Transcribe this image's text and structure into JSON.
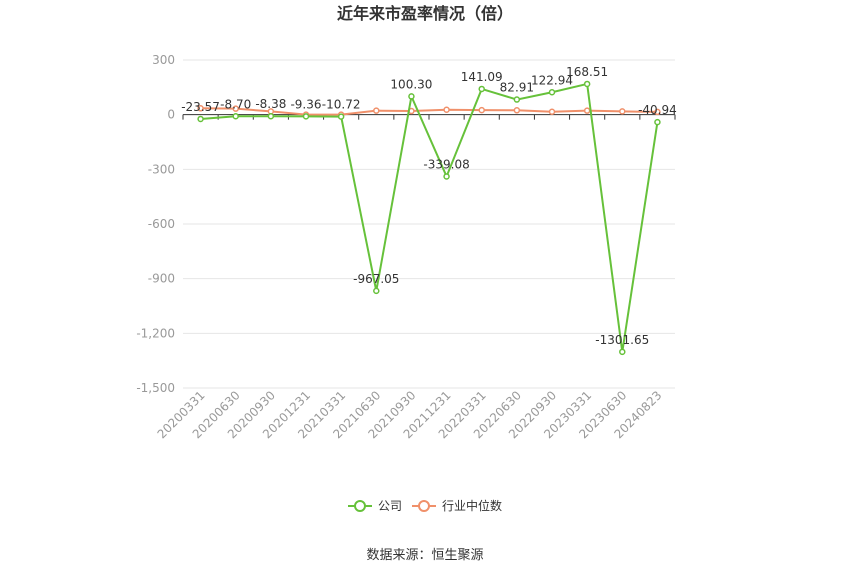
{
  "chart_data": {
    "type": "line",
    "title": "近年来市盈率情况（倍）",
    "xlabel": "",
    "ylabel": "",
    "ylim": [
      -1500,
      300
    ],
    "yticks": [
      300,
      0,
      -300,
      -600,
      -900,
      -1200,
      -1500
    ],
    "ytick_labels": [
      "300",
      "0",
      "-300",
      "-600",
      "-900",
      "-1,200",
      "-1,500"
    ],
    "categories": [
      "20200331",
      "20200630",
      "20200930",
      "20201231",
      "20210331",
      "20210630",
      "20210930",
      "20211231",
      "20220331",
      "20220630",
      "20220930",
      "20230331",
      "20230630",
      "20240823"
    ],
    "series": [
      {
        "name": "公司",
        "color": "#66c13a",
        "values": [
          -23.57,
          -8.7,
          -8.38,
          -9.36,
          -10.72,
          -967.05,
          100.3,
          -339.08,
          141.09,
          82.91,
          122.94,
          168.51,
          -1301.65,
          -40.94
        ],
        "labels": [
          "-23.57",
          "-8.70",
          "-8.38",
          "-9.36",
          "-10.72",
          "-967.05",
          "100.30",
          "-339.08",
          "141.09",
          "82.91",
          "122.94",
          "168.51",
          "-1301.65",
          "-40.94"
        ]
      },
      {
        "name": "行业中位数",
        "color": "#f0906a",
        "values": [
          35,
          33,
          18,
          0,
          0,
          22,
          20,
          27,
          25,
          24,
          16,
          22,
          18,
          15
        ]
      }
    ],
    "grid": true,
    "legend_position": "bottom"
  },
  "source": "数据来源：恒生聚源"
}
